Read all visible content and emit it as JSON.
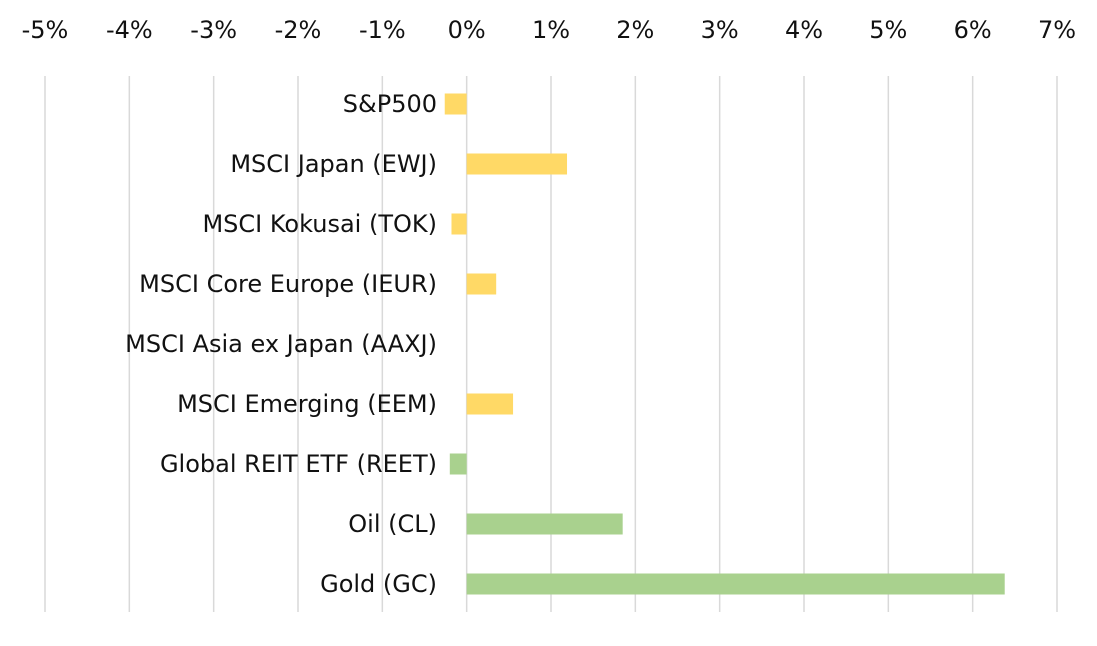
{
  "chart_data": {
    "type": "bar",
    "orientation": "horizontal",
    "categories": [
      "S&P500",
      "MSCI Japan (EWJ)",
      "MSCI Kokusai (TOK)",
      "MSCI Core Europe (IEUR)",
      "MSCI Asia ex Japan (AAXJ)",
      "MSCI Emerging (EEM)",
      "Global REIT ETF (REET)",
      "Oil (CL)",
      "Gold (GC)"
    ],
    "values": [
      -0.26,
      1.19,
      -0.18,
      0.35,
      0.0,
      0.55,
      -0.2,
      1.85,
      6.38
    ],
    "bar_colors": [
      "#FFD966",
      "#FFD966",
      "#FFD966",
      "#FFD966",
      "#FFD966",
      "#FFD966",
      "#A9D18E",
      "#A9D18E",
      "#A9D18E"
    ],
    "xlim": [
      -5,
      7
    ],
    "x_ticks": [
      -5,
      -4,
      -3,
      -2,
      -1,
      0,
      1,
      2,
      3,
      4,
      5,
      6,
      7
    ],
    "x_tick_labels": [
      "-5%",
      "-4%",
      "-3%",
      "-2%",
      "-1%",
      "0%",
      "1%",
      "2%",
      "3%",
      "4%",
      "5%",
      "6%",
      "7%"
    ],
    "x_axis_position": "top",
    "grid": true,
    "gridline_color": "#D9D9D9",
    "legend": "none",
    "title": "",
    "xlabel": "",
    "ylabel": ""
  }
}
